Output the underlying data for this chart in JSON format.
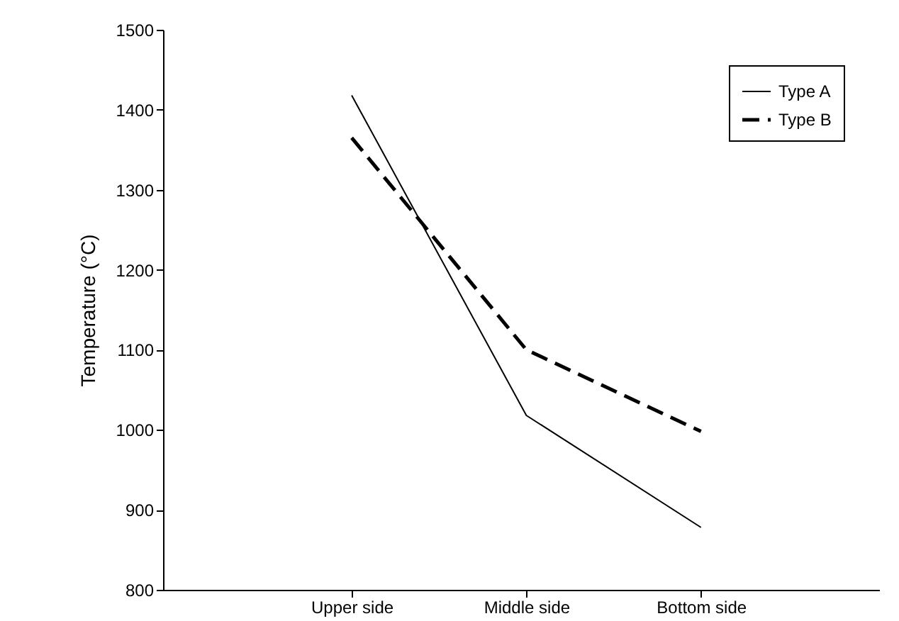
{
  "chart_data": {
    "type": "line",
    "ylabel": "Temperature (°C)",
    "categories": [
      "Upper side",
      "Middle side",
      "Bottom side"
    ],
    "series": [
      {
        "name": "Type A",
        "color": "#000000",
        "line_style": "solid",
        "values": [
          1418,
          1018,
          878
        ]
      },
      {
        "name": "Type B",
        "color": "#000000",
        "line_style": "dashed",
        "values": [
          1365,
          1100,
          998
        ]
      }
    ],
    "ylim": [
      800,
      1500
    ],
    "yticks": [
      800,
      900,
      1000,
      1100,
      1200,
      1300,
      1400,
      1500
    ],
    "grid": false,
    "legend": "top right",
    "marker": "none"
  }
}
